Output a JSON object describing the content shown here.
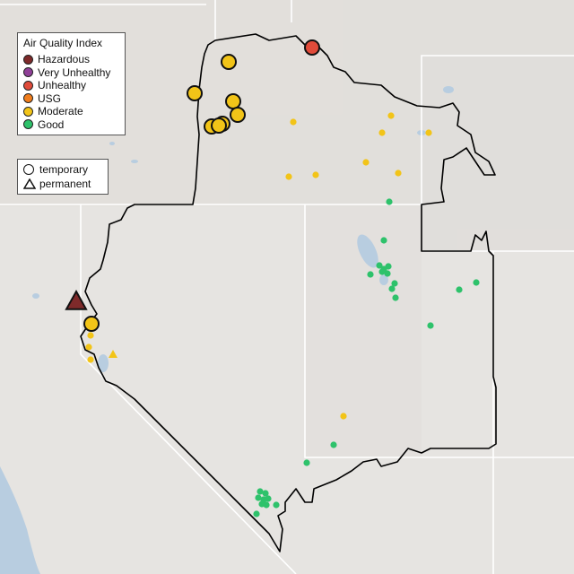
{
  "legend": {
    "title": "Air Quality Index",
    "categories": [
      {
        "label": "Hazardous",
        "color": "#7e2a2a"
      },
      {
        "label": "Very Unhealthy",
        "color": "#8f3f97"
      },
      {
        "label": "Unhealthy",
        "color": "#e04b3a"
      },
      {
        "label": "USG",
        "color": "#f07d1c"
      },
      {
        "label": "Moderate",
        "color": "#f2c418"
      },
      {
        "label": "Good",
        "color": "#2ec26b"
      }
    ],
    "types": [
      {
        "label": "temporary",
        "shape": "circle"
      },
      {
        "label": "permanent",
        "shape": "triangle"
      }
    ]
  },
  "colors": {
    "land": "#e6e4e1",
    "water": "#b8cde0",
    "district_border": "#000000",
    "state_lines": "#ffffff"
  }
}
